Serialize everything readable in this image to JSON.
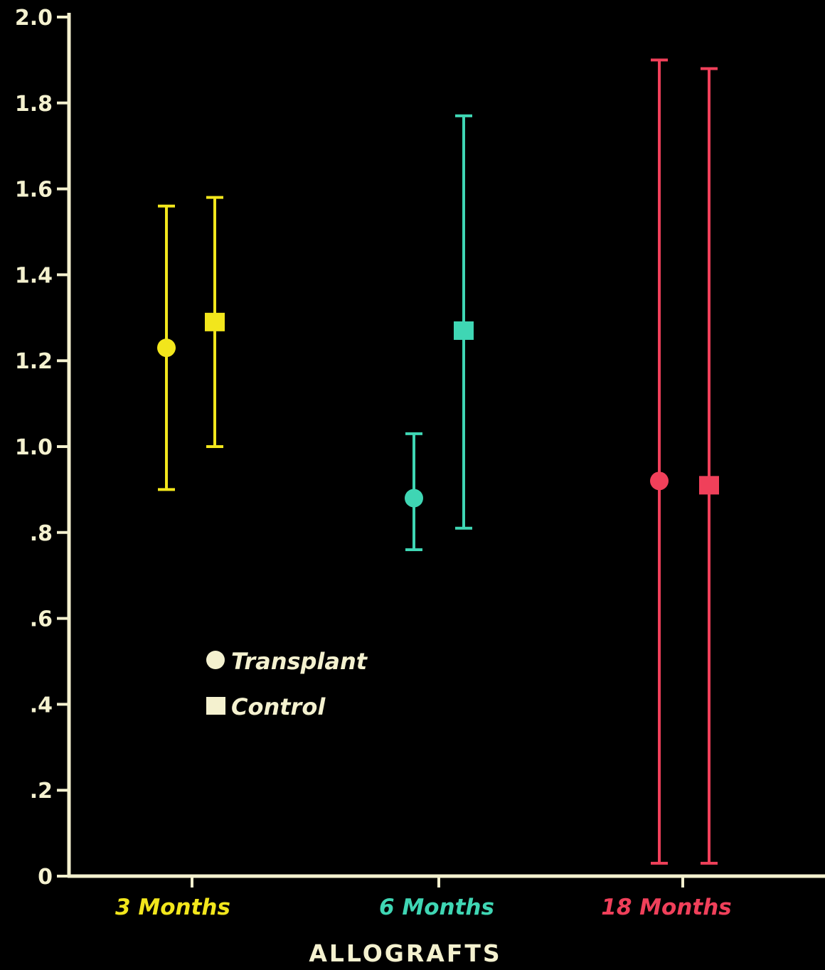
{
  "chart_data": {
    "type": "scatter",
    "xlabel": "ALLOGRAFTS",
    "ylabel": "",
    "ylim": [
      0,
      2.0
    ],
    "yticks": [
      {
        "value": 2.0,
        "label": "2.0"
      },
      {
        "value": 1.8,
        "label": "1.8"
      },
      {
        "value": 1.6,
        "label": "1.6"
      },
      {
        "value": 1.4,
        "label": "1.4"
      },
      {
        "value": 1.2,
        "label": "1.2"
      },
      {
        "value": 1.0,
        "label": "1.0"
      },
      {
        "value": 0.8,
        "label": ".8"
      },
      {
        "value": 0.6,
        "label": ".6"
      },
      {
        "value": 0.4,
        "label": ".4"
      },
      {
        "value": 0.2,
        "label": ".2"
      },
      {
        "value": 0,
        "label": "0"
      }
    ],
    "categories": [
      {
        "label": "3 Months",
        "color": "#f2e61c"
      },
      {
        "label": "6 Months",
        "color": "#3fd6b4"
      },
      {
        "label": "18 Months",
        "color": "#f0405a"
      }
    ],
    "series": [
      {
        "name": "Transplant",
        "marker": "circle",
        "values": [
          1.23,
          0.88,
          0.92
        ],
        "error_low": [
          0.9,
          0.76,
          0.03
        ],
        "error_high": [
          1.56,
          1.03,
          1.9
        ]
      },
      {
        "name": "Control",
        "marker": "square",
        "values": [
          1.29,
          1.27,
          0.91
        ],
        "error_low": [
          1.0,
          0.81,
          0.03
        ],
        "error_high": [
          1.58,
          1.77,
          1.88
        ]
      }
    ],
    "legend_position": "lower-left",
    "grid": false,
    "axis_color": "#f4f1cf"
  }
}
